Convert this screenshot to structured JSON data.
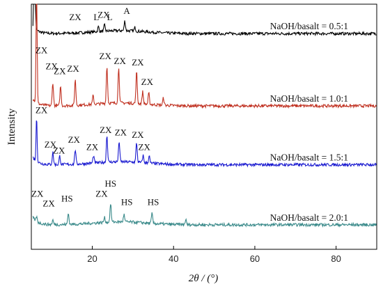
{
  "chart_data": {
    "type": "line",
    "title": "",
    "xlabel": "2θ / (°)",
    "ylabel": "Intensity",
    "xlim": [
      5,
      90
    ],
    "xticks": [
      20,
      40,
      60,
      80
    ],
    "grid": false,
    "legend": "none",
    "series": [
      {
        "name": "NaOH/basalt = 0.5:1",
        "color": "#000000",
        "baseline": 0.88,
        "peaks": [
          [
            5.8,
            1.02
          ],
          [
            21.5,
            0.02
          ],
          [
            23.0,
            0.025
          ],
          [
            28.0,
            0.04
          ],
          [
            30.5,
            0.015
          ]
        ],
        "labels": [
          {
            "text": "ZX",
            "x": 15.8,
            "y": 0.935
          },
          {
            "text": "L",
            "x": 21.0,
            "y": 0.935
          },
          {
            "text": "ZX",
            "x": 22.8,
            "y": 0.945
          },
          {
            "text": "L",
            "x": 24.3,
            "y": 0.935
          },
          {
            "text": "A",
            "x": 28.5,
            "y": 0.96
          }
        ]
      },
      {
        "name": "NaOH/basalt = 1.0:1",
        "color": "#c03020",
        "baseline": 0.585,
        "peaks": [
          [
            6.3,
            0.54
          ],
          [
            10.3,
            0.095
          ],
          [
            12.2,
            0.08
          ],
          [
            15.8,
            0.105
          ],
          [
            20.2,
            0.035
          ],
          [
            23.6,
            0.15
          ],
          [
            26.5,
            0.145
          ],
          [
            30.9,
            0.13
          ],
          [
            32.4,
            0.05
          ],
          [
            33.9,
            0.045
          ],
          [
            37.5,
            0.03
          ]
        ],
        "labels": [
          {
            "text": "ZX",
            "x": 7.5,
            "y": 0.8
          },
          {
            "text": "ZX",
            "x": 10.0,
            "y": 0.735
          },
          {
            "text": "ZX",
            "x": 12.0,
            "y": 0.715
          },
          {
            "text": "ZX",
            "x": 15.3,
            "y": 0.725
          },
          {
            "text": "ZX",
            "x": 23.2,
            "y": 0.775
          },
          {
            "text": "ZX",
            "x": 26.8,
            "y": 0.755
          },
          {
            "text": "ZX",
            "x": 31.2,
            "y": 0.75
          },
          {
            "text": "ZX",
            "x": 33.5,
            "y": 0.67
          }
        ]
      },
      {
        "name": "NaOH/basalt = 1.5:1",
        "color": "#1a1ad0",
        "baseline": 0.345,
        "peaks": [
          [
            6.3,
            0.185
          ],
          [
            10.3,
            0.05
          ],
          [
            12.0,
            0.035
          ],
          [
            15.8,
            0.06
          ],
          [
            20.3,
            0.03
          ],
          [
            23.6,
            0.11
          ],
          [
            26.6,
            0.085
          ],
          [
            30.9,
            0.08
          ],
          [
            32.5,
            0.03
          ],
          [
            34.0,
            0.03
          ]
        ],
        "labels": [
          {
            "text": "ZX",
            "x": 7.5,
            "y": 0.555
          },
          {
            "text": "ZX",
            "x": 9.7,
            "y": 0.415
          },
          {
            "text": "ZX",
            "x": 11.8,
            "y": 0.39
          },
          {
            "text": "ZX",
            "x": 15.5,
            "y": 0.435
          },
          {
            "text": "ZX",
            "x": 20.0,
            "y": 0.405
          },
          {
            "text": "ZX",
            "x": 23.3,
            "y": 0.475
          },
          {
            "text": "ZX",
            "x": 27.0,
            "y": 0.465
          },
          {
            "text": "ZX",
            "x": 31.2,
            "y": 0.455
          },
          {
            "text": "ZX",
            "x": 32.8,
            "y": 0.405
          }
        ]
      },
      {
        "name": "NaOH/basalt = 2.0:1",
        "color": "#3a8a8a",
        "baseline": 0.1,
        "peaks": [
          [
            6.3,
            0.02
          ],
          [
            10.3,
            0.018
          ],
          [
            14.1,
            0.045
          ],
          [
            23.0,
            0.02
          ],
          [
            24.5,
            0.075
          ],
          [
            27.8,
            0.03
          ],
          [
            34.7,
            0.04
          ],
          [
            43.0,
            0.02
          ]
        ],
        "labels": [
          {
            "text": "ZX",
            "x": 6.5,
            "y": 0.215
          },
          {
            "text": "ZX",
            "x": 9.3,
            "y": 0.175
          },
          {
            "text": "HS",
            "x": 13.8,
            "y": 0.195
          },
          {
            "text": "ZX",
            "x": 22.3,
            "y": 0.215
          },
          {
            "text": "HS",
            "x": 24.5,
            "y": 0.255
          },
          {
            "text": "HS",
            "x": 28.5,
            "y": 0.18
          },
          {
            "text": "HS",
            "x": 35.0,
            "y": 0.18
          }
        ]
      }
    ]
  }
}
